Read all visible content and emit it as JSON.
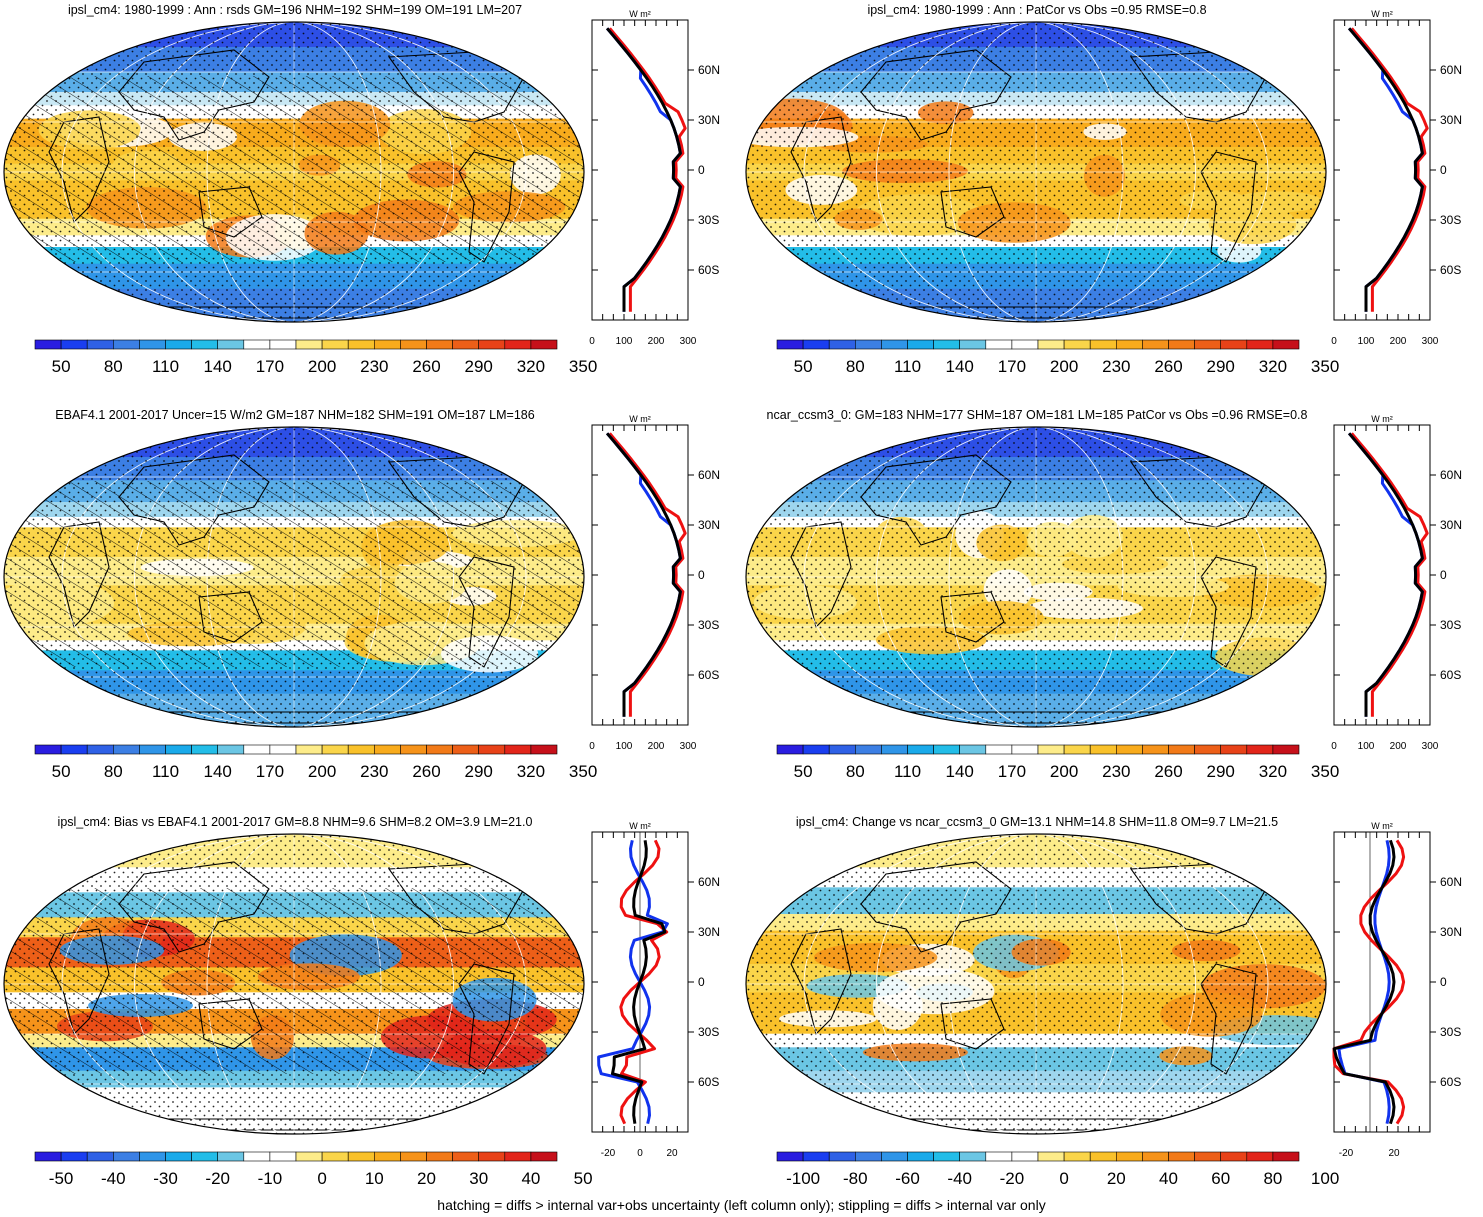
{
  "panels": [
    {
      "id": "p1",
      "title": "ipsl_cm4: 1980-1999 : Ann : rsds GM=196 NHM=192 SHM=199 OM=191 LM=207",
      "kind": "abs",
      "hatched": true,
      "colorbar": {
        "labels": [
          "50",
          "80",
          "110",
          "140",
          "170",
          "200",
          "230",
          "260",
          "290",
          "320",
          "350"
        ]
      },
      "zonal": {
        "unit": "W m²",
        "xticks": [
          "0",
          "100",
          "200",
          "300"
        ],
        "xlim": [
          0,
          300
        ],
        "lat_labels": [
          "60N",
          "30N",
          "0",
          "30S",
          "60S"
        ]
      }
    },
    {
      "id": "p2",
      "title": "ipsl_cm4: 1980-1999 : Ann : PatCor vs Obs =0.95 RMSE=0.8",
      "kind": "abs",
      "hatched": false,
      "colorbar": {
        "labels": [
          "50",
          "80",
          "110",
          "140",
          "170",
          "200",
          "230",
          "260",
          "290",
          "320",
          "350"
        ]
      },
      "zonal": {
        "unit": "W m²",
        "xticks": [
          "0",
          "100",
          "200",
          "300"
        ],
        "xlim": [
          0,
          300
        ],
        "lat_labels": [
          "60N",
          "30N",
          "0",
          "30S",
          "60S"
        ]
      }
    },
    {
      "id": "p3",
      "title": "EBAF4.1 2001-2017 Uncer=15 W/m2 GM=187 NHM=182 SHM=191 OM=187 LM=186",
      "kind": "abs2",
      "hatched": true,
      "colorbar": {
        "labels": [
          "50",
          "80",
          "110",
          "140",
          "170",
          "200",
          "230",
          "260",
          "290",
          "320",
          "350"
        ]
      },
      "zonal": {
        "unit": "W m²",
        "xticks": [
          "0",
          "100",
          "200",
          "300"
        ],
        "xlim": [
          0,
          300
        ],
        "lat_labels": [
          "60N",
          "30N",
          "0",
          "30S",
          "60S"
        ]
      }
    },
    {
      "id": "p4",
      "title": "ncar_ccsm3_0: GM=183 NHM=177 SHM=187 OM=181 LM=185 PatCor vs Obs =0.96 RMSE=0.8",
      "kind": "abs2",
      "hatched": false,
      "colorbar": {
        "labels": [
          "50",
          "80",
          "110",
          "140",
          "170",
          "200",
          "230",
          "260",
          "290",
          "320",
          "350"
        ]
      },
      "zonal": {
        "unit": "W m²",
        "xticks": [
          "0",
          "100",
          "200",
          "300"
        ],
        "xlim": [
          0,
          300
        ],
        "lat_labels": [
          "60N",
          "30N",
          "0",
          "30S",
          "60S"
        ]
      }
    },
    {
      "id": "p5",
      "title": "ipsl_cm4: Bias vs EBAF4.1 2001-2017 GM=8.8 NHM=9.6 SHM=8.2 OM=3.9 LM=21.0",
      "kind": "bias",
      "hatched": true,
      "colorbar": {
        "labels": [
          "-50",
          "-40",
          "-30",
          "-20",
          "-10",
          "0",
          "10",
          "20",
          "30",
          "40",
          "50"
        ]
      },
      "zonal": {
        "unit": "W m²",
        "xticks": [
          "-20",
          "0",
          "20"
        ],
        "xlim": [
          -30,
          30
        ],
        "lat_labels": [
          "60N",
          "30N",
          "0",
          "30S",
          "60S"
        ]
      }
    },
    {
      "id": "p6",
      "title": "ipsl_cm4: Change vs ncar_ccsm3_0 GM=13.1 NHM=14.8 SHM=11.8 OM=9.7 LM=21.5",
      "kind": "change",
      "hatched": false,
      "colorbar": {
        "labels": [
          "-100",
          "-80",
          "-60",
          "-40",
          "-20",
          "0",
          "20",
          "40",
          "60",
          "80",
          "100"
        ]
      },
      "zonal": {
        "unit": "W m²",
        "xticks": [
          "-20",
          "20"
        ],
        "xlim": [
          -30,
          50
        ],
        "lat_labels": [
          "60N",
          "30N",
          "0",
          "30S",
          "60S"
        ]
      }
    }
  ],
  "colorbar_colors": [
    "#2a1de0",
    "#1a3ef0",
    "#2f61e6",
    "#3c7fe4",
    "#2f95e8",
    "#1aaaea",
    "#23bde8",
    "#6bc6e4",
    "#ffffff",
    "#ffffff",
    "#fdec8a",
    "#fad54a",
    "#f9c12a",
    "#f8ab1c",
    "#f6931a",
    "#f27a18",
    "#ed5f18",
    "#e84218",
    "#e2251a",
    "#c6101a"
  ],
  "zonal_series_colors": {
    "model": "#ee1111",
    "obs": "#1133ee",
    "ref": "#000000"
  },
  "footer": "hatching = diffs > internal var+obs uncertainty (left column only); stippling = diffs > internal var only"
}
